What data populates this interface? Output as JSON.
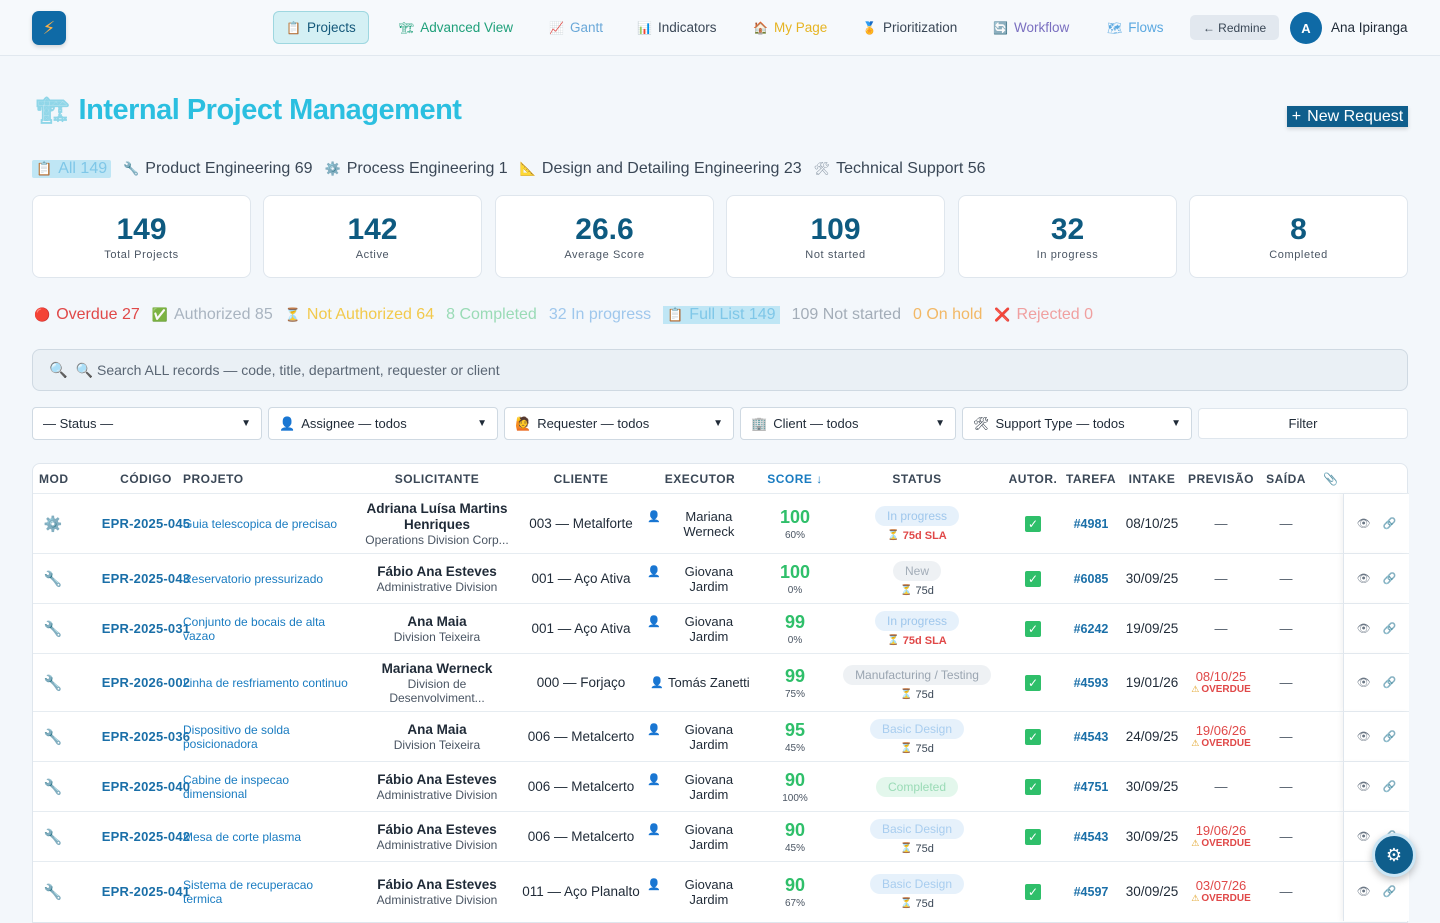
{
  "nav": {
    "items": [
      {
        "icon": "📋",
        "label": "Projects",
        "color": "#14587a",
        "active": true
      },
      {
        "icon": "🏗",
        "label": "Advanced View",
        "color": "#1fa07a"
      },
      {
        "icon": "📈",
        "label": "Gantt",
        "color": "#6aa8d8"
      },
      {
        "icon": "📊",
        "label": "Indicators",
        "color": "#3a4756"
      },
      {
        "icon": "🏠",
        "label": "My Page",
        "color": "#e6b422"
      },
      {
        "icon": "🏅",
        "label": "Prioritization",
        "color": "#3a4756"
      },
      {
        "icon": "🔄",
        "label": "Workflow",
        "color": "#7a6fc0"
      },
      {
        "icon": "🗺",
        "label": "Flows",
        "color": "#5aa8e0"
      }
    ],
    "redmine_label": "← Redmine",
    "user_initial": "A",
    "user_name": "Ana Ipiranga"
  },
  "page": {
    "title": "Internal Project Management",
    "new_request_label": "New Request"
  },
  "departments": [
    {
      "icon": "📋",
      "label": "All 149",
      "active": true
    },
    {
      "icon": "🔧",
      "label": "Product Engineering 69"
    },
    {
      "icon": "⚙️",
      "label": "Process Engineering 1"
    },
    {
      "icon": "📐",
      "label": "Design and Detailing Engineering 23"
    },
    {
      "icon": "🛠",
      "label": "Technical Support 56"
    }
  ],
  "stats": [
    {
      "value": "149",
      "label": "Total Projects"
    },
    {
      "value": "142",
      "label": "Active"
    },
    {
      "value": "26.6",
      "label": "Average Score"
    },
    {
      "value": "109",
      "label": "Not started"
    },
    {
      "value": "32",
      "label": "In progress"
    },
    {
      "value": "8",
      "label": "Completed"
    }
  ],
  "status_filters": [
    {
      "icon": "🔴",
      "label": "Overdue 27",
      "color": "#e04848"
    },
    {
      "icon": "✅",
      "label": "Authorized 85",
      "color": "#a9b4c0"
    },
    {
      "icon": "⏳",
      "label": "Not Authorized 64",
      "color": "#f2c94c"
    },
    {
      "icon": "",
      "label": "8 Completed",
      "color": "#9adbb6"
    },
    {
      "icon": "",
      "label": "32 In progress",
      "color": "#9fc7ec"
    },
    {
      "icon": "📋",
      "label": "Full List 149",
      "color": "#7fc7e8",
      "active": true
    },
    {
      "icon": "",
      "label": "109 Not started",
      "color": "#a3adb8"
    },
    {
      "icon": "",
      "label": "0 On hold",
      "color": "#f2b866"
    },
    {
      "icon": "❌",
      "label": "Rejected 0",
      "color": "#f0a0a0"
    }
  ],
  "search": {
    "placeholder": "🔍 Search ALL records — code, title, department, requester or client"
  },
  "filters": [
    {
      "icon": "",
      "label": "— Status —"
    },
    {
      "icon": "👤",
      "label": "Assignee — todos"
    },
    {
      "icon": "🙋",
      "label": "Requester — todos"
    },
    {
      "icon": "🏢",
      "label": "Client — todos"
    },
    {
      "icon": "🛠",
      "label": "Support Type — todos"
    }
  ],
  "filter_button": "Filter",
  "table": {
    "headers": [
      "MOD",
      "CÓDIGO",
      "PROJETO",
      "SOLICITANTE",
      "CLIENTE",
      "EXECUTOR",
      "SCORE ↓",
      "STATUS",
      "AUTOR.",
      "TAREFA",
      "INTAKE",
      "PREVISÃO",
      "SAÍDA",
      "📎"
    ],
    "rows": [
      {
        "mod": "⚙️",
        "code": "EPR-2025-045",
        "project": "Guia telescopica de precisao",
        "requester": "Adriana Luísa Martins Henriques",
        "division": "Operations Division Corp...",
        "client": "003 — Metalforte",
        "executor": "Mariana Werneck",
        "score": "100",
        "pct": "60%",
        "status": "In progress",
        "status_class": "b-progress",
        "sla": "75d SLA",
        "sla_red": true,
        "task": "#4981",
        "intake": "08/10/25",
        "forecast": "—",
        "forecast_overdue": false,
        "exit": "—"
      },
      {
        "mod": "🔧",
        "code": "EPR-2025-043",
        "project": "Reservatorio pressurizado",
        "requester": "Fábio Ana Esteves",
        "division": "Administrative Division",
        "client": "001 — Aço Ativa",
        "executor": "Giovana Jardim",
        "score": "100",
        "pct": "0%",
        "status": "New",
        "status_class": "b-new",
        "sla": "75d",
        "sla_red": false,
        "task": "#6085",
        "intake": "30/09/25",
        "forecast": "—",
        "forecast_overdue": false,
        "exit": "—"
      },
      {
        "mod": "🔧",
        "code": "EPR-2025-031",
        "project": "Conjunto de bocais de alta vazao",
        "requester": "Ana Maia",
        "division": "Division Teixeira",
        "client": "001 — Aço Ativa",
        "executor": "Giovana Jardim",
        "score": "99",
        "pct": "0%",
        "status": "In progress",
        "status_class": "b-progress",
        "sla": "75d SLA",
        "sla_red": true,
        "task": "#6242",
        "intake": "19/09/25",
        "forecast": "—",
        "forecast_overdue": false,
        "exit": "—"
      },
      {
        "mod": "🔧",
        "code": "EPR-2026-002",
        "project": "Linha de resfriamento continuo",
        "requester": "Mariana Werneck",
        "division": "Division de Desenvolviment...",
        "client": "000 — Forjaço",
        "executor": "Tomás Zanetti",
        "score": "99",
        "pct": "75%",
        "status": "Manufacturing / Testing",
        "status_class": "b-mfg",
        "sla": "75d",
        "sla_red": false,
        "task": "#4593",
        "intake": "19/01/26",
        "forecast": "08/10/25",
        "forecast_overdue": true,
        "exit": "—"
      },
      {
        "mod": "🔧",
        "code": "EPR-2025-036",
        "project": "Dispositivo de solda posicionadora",
        "requester": "Ana Maia",
        "division": "Division Teixeira",
        "client": "006 — Metalcerto",
        "executor": "Giovana Jardim",
        "score": "95",
        "pct": "45%",
        "status": "Basic Design",
        "status_class": "b-design",
        "sla": "75d",
        "sla_red": false,
        "task": "#4543",
        "intake": "24/09/25",
        "forecast": "19/06/26",
        "forecast_overdue": true,
        "exit": "—"
      },
      {
        "mod": "🔧",
        "code": "EPR-2025-040",
        "project": "Cabine de inspecao dimensional",
        "requester": "Fábio Ana Esteves",
        "division": "Administrative Division",
        "client": "006 — Metalcerto",
        "executor": "Giovana Jardim",
        "score": "90",
        "pct": "100%",
        "status": "Completed",
        "status_class": "b-done",
        "sla": "",
        "sla_red": false,
        "task": "#4751",
        "intake": "30/09/25",
        "forecast": "—",
        "forecast_overdue": false,
        "exit": "—"
      },
      {
        "mod": "🔧",
        "code": "EPR-2025-042",
        "project": "Mesa de corte plasma",
        "requester": "Fábio Ana Esteves",
        "division": "Administrative Division",
        "client": "006 — Metalcerto",
        "executor": "Giovana Jardim",
        "score": "90",
        "pct": "45%",
        "status": "Basic Design",
        "status_class": "b-design",
        "sla": "75d",
        "sla_red": false,
        "task": "#4543",
        "intake": "30/09/25",
        "forecast": "19/06/26",
        "forecast_overdue": true,
        "exit": "—"
      },
      {
        "mod": "🔧",
        "code": "EPR-2025-041",
        "project": "Sistema de recuperacao termica",
        "requester": "Fábio Ana Esteves",
        "division": "Administrative Division",
        "client": "011 — Aço Planalto",
        "executor": "Giovana Jardim",
        "score": "90",
        "pct": "67%",
        "status": "Basic Design",
        "status_class": "b-design",
        "sla": "75d",
        "sla_red": false,
        "task": "#4597",
        "intake": "30/09/25",
        "forecast": "03/07/26",
        "forecast_overdue": true,
        "exit": "—"
      }
    ],
    "overdue_label": "OVERDUE"
  }
}
